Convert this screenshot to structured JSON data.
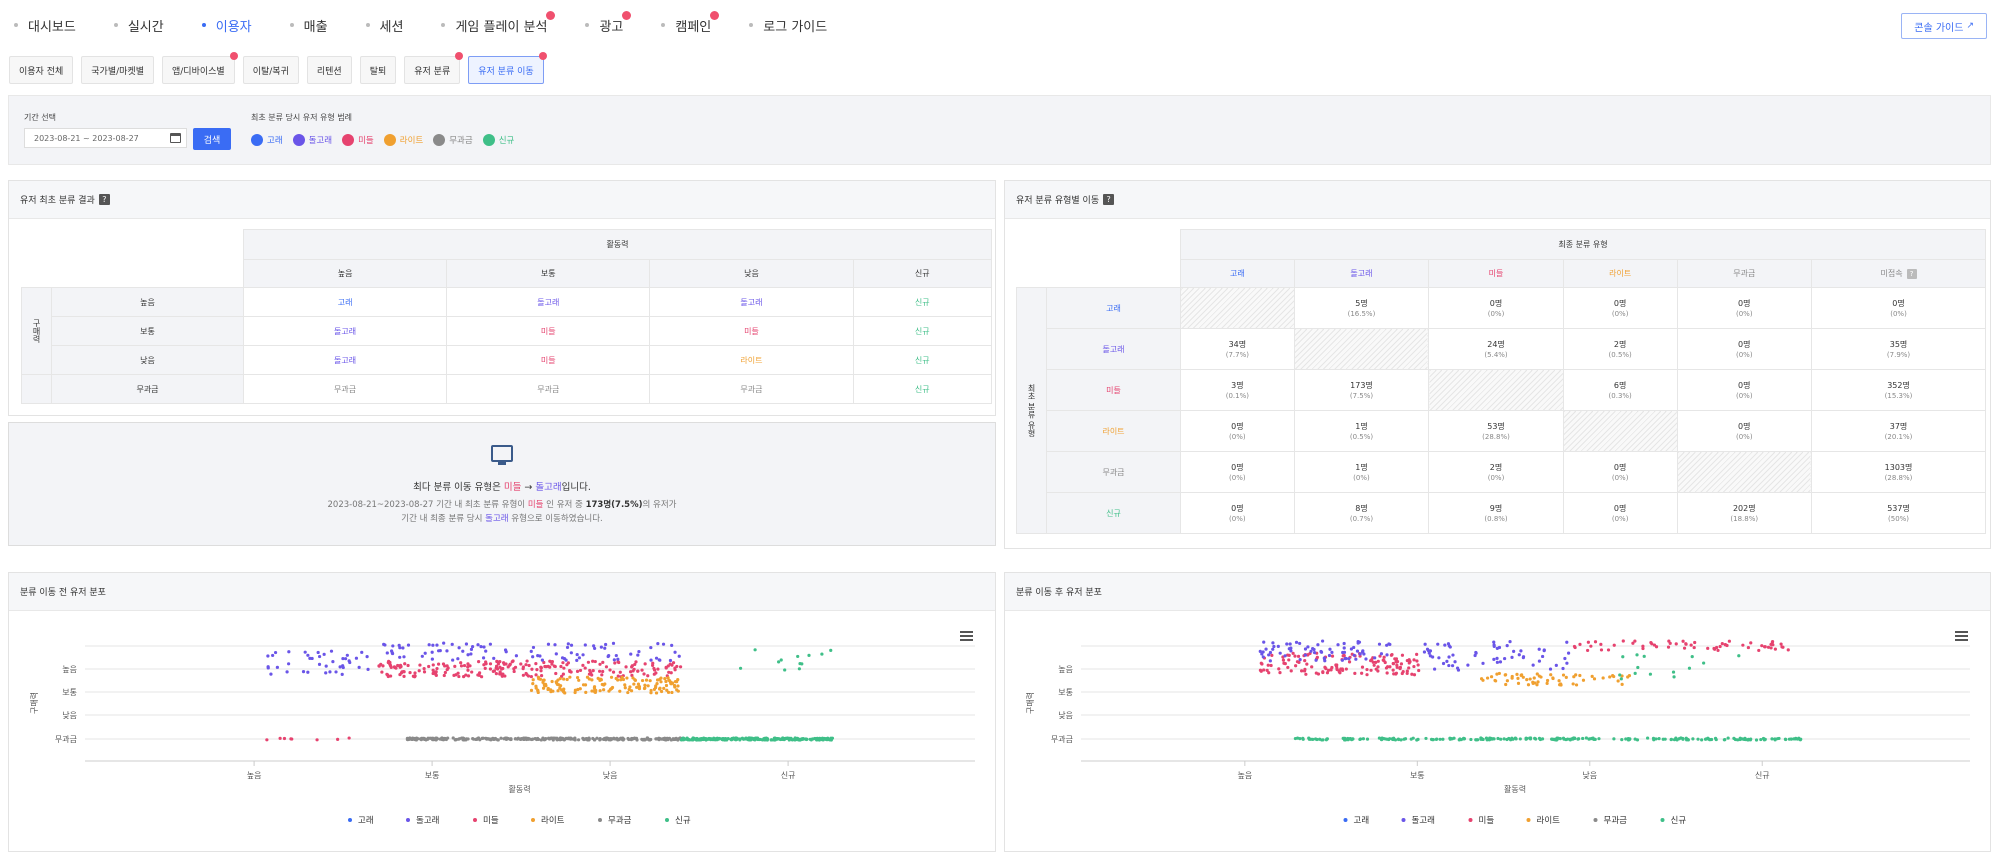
{
  "nav": {
    "items": [
      "대시보드",
      "실시간",
      "이용자",
      "매출",
      "세션",
      "게임 플레이 분석",
      "광고",
      "캠페인",
      "로그 가이드"
    ],
    "active": "이용자",
    "guide_button": "콘솔 가이드"
  },
  "subtabs": [
    "이용자 전체",
    "국가별/마켓별",
    "앱/디바이스별",
    "이탈/복귀",
    "리텐션",
    "탈퇴",
    "유저 분류",
    "유저 분류 이동"
  ],
  "filter": {
    "period_label": "기간 선택",
    "date_range": "2023-08-21 ~ 2023-08-27",
    "search_button": "검색",
    "legend_title": "최초 분류 당시 유저 유형 범례",
    "legend": [
      "고래",
      "돌고래",
      "미들",
      "라이트",
      "무과금",
      "신규"
    ]
  },
  "colors": {
    "whale": "#3a6cf4",
    "dolphin": "#6a55e8",
    "minnow": "#e6436f",
    "light": "#f0a030",
    "free": "#8a8a8a",
    "new": "#3fbf88",
    "accent": "#3a6cf4"
  },
  "initial": {
    "title": "유저 최초 분류 결과",
    "col_group": "활동력",
    "row_group": "구매력",
    "columns": [
      "높음",
      "보통",
      "낮음",
      "신규"
    ],
    "rows": [
      {
        "label": "높음",
        "cells": [
          "고래",
          "돌고래",
          "돌고래",
          "신규"
        ]
      },
      {
        "label": "보통",
        "cells": [
          "돌고래",
          "미들",
          "미들",
          "신규"
        ]
      },
      {
        "label": "낮음",
        "cells": [
          "돌고래",
          "미들",
          "라이트",
          "신규"
        ]
      },
      {
        "label": "무과금",
        "cells": [
          "무과금",
          "무과금",
          "무과금",
          "신규"
        ]
      }
    ]
  },
  "summary": {
    "main_pre": "최다 분류 이동 유형은 ",
    "from": "미들",
    "arrow": " → ",
    "to": "돌고래",
    "main_post": "입니다.",
    "line1_pre": "2023-08-21~2023-08-27 기간 내 최초 분류 유형이 ",
    "line1_mid": " 인 유저 중 ",
    "line1_count": "173명(7.5%)",
    "line1_post": "의 유저가",
    "line2_pre": "기간 내 최종 분류 당시 ",
    "line2_post": " 유형으로 이동하였습니다."
  },
  "movement": {
    "title": "유저 분류 유형별 이동",
    "col_group": "최종 분류 유형",
    "row_group": "최초 분류 유형",
    "columns": [
      "고래",
      "돌고래",
      "미들",
      "라이트",
      "무과금",
      "미접속"
    ],
    "rows": [
      {
        "label": "고래",
        "cells": [
          null,
          [
            "5명",
            "(16.5%)"
          ],
          [
            "0명",
            "(0%)"
          ],
          [
            "0명",
            "(0%)"
          ],
          [
            "0명",
            "(0%)"
          ],
          [
            "0명",
            "(0%)"
          ]
        ]
      },
      {
        "label": "돌고래",
        "cells": [
          [
            "34명",
            "(7.7%)"
          ],
          null,
          [
            "24명",
            "(5.4%)"
          ],
          [
            "2명",
            "(0.5%)"
          ],
          [
            "0명",
            "(0%)"
          ],
          [
            "35명",
            "(7.9%)"
          ]
        ]
      },
      {
        "label": "미들",
        "cells": [
          [
            "3명",
            "(0.1%)"
          ],
          [
            "173명",
            "(7.5%)"
          ],
          null,
          [
            "6명",
            "(0.3%)"
          ],
          [
            "0명",
            "(0%)"
          ],
          [
            "352명",
            "(15.3%)"
          ]
        ]
      },
      {
        "label": "라이트",
        "cells": [
          [
            "0명",
            "(0%)"
          ],
          [
            "1명",
            "(0.5%)"
          ],
          [
            "53명",
            "(28.8%)"
          ],
          null,
          [
            "0명",
            "(0%)"
          ],
          [
            "37명",
            "(20.1%)"
          ]
        ]
      },
      {
        "label": "무과금",
        "cells": [
          [
            "0명",
            "(0%)"
          ],
          [
            "1명",
            "(0%)"
          ],
          [
            "2명",
            "(0%)"
          ],
          [
            "0명",
            "(0%)"
          ],
          null,
          [
            "1303명",
            "(28.8%)"
          ]
        ]
      },
      {
        "label": "신규",
        "cells": [
          [
            "0명",
            "(0%)"
          ],
          [
            "8명",
            "(0.7%)"
          ],
          [
            "9명",
            "(0.8%)"
          ],
          [
            "0명",
            "(0%)"
          ],
          [
            "202명",
            "(18.8%)"
          ],
          [
            "537명",
            "(50%)"
          ]
        ]
      }
    ]
  },
  "chart_data": [
    {
      "type": "scatter",
      "title": "분류 이동 전 유저 분포",
      "xlabel": "활동력",
      "ylabel": "구매력",
      "x_ticks": [
        "높음",
        "보통",
        "낮음",
        "신규"
      ],
      "y_ticks": [
        "높음",
        "보통",
        "낮음",
        "무과금"
      ],
      "legend": [
        "고래",
        "돌고래",
        "미들",
        "라이트",
        "무과금",
        "신규"
      ],
      "legend_position": "bottom"
    },
    {
      "type": "scatter",
      "title": "분류 이동 후 유저 분포",
      "xlabel": "활동력",
      "ylabel": "구매력",
      "x_ticks": [
        "높음",
        "보통",
        "낮음",
        "신규"
      ],
      "y_ticks": [
        "높음",
        "보통",
        "낮음",
        "무과금"
      ],
      "legend": [
        "고래",
        "돌고래",
        "미들",
        "라이트",
        "무과금",
        "신규"
      ],
      "legend_position": "bottom"
    }
  ]
}
